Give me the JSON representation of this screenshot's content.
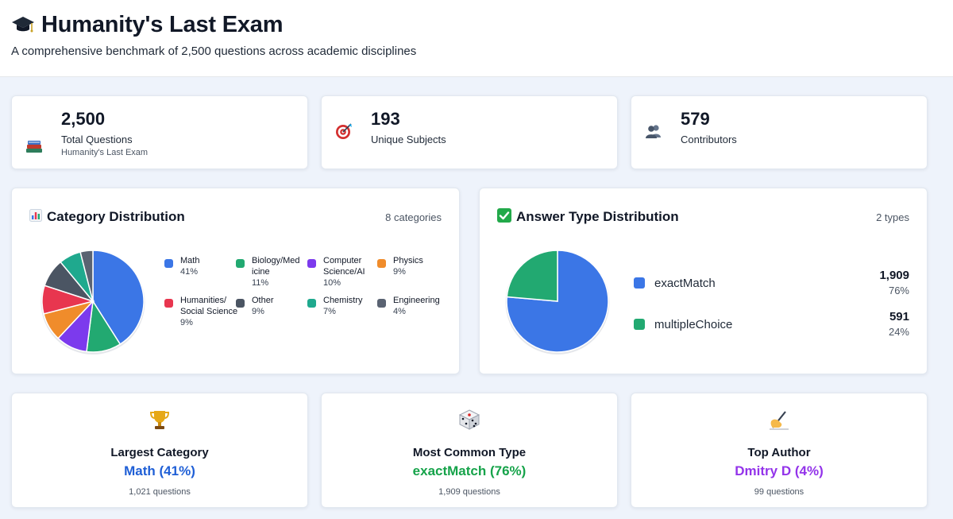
{
  "header": {
    "title": "Humanity's Last Exam",
    "subtitle": "A comprehensive benchmark of 2,500 questions across academic disciplines"
  },
  "stats": [
    {
      "icon": "books-icon",
      "value": "2,500",
      "label": "Total Questions",
      "sub": "Humanity's Last Exam"
    },
    {
      "icon": "target-icon",
      "value": "193",
      "label": "Unique Subjects",
      "sub": ""
    },
    {
      "icon": "people-icon",
      "value": "579",
      "label": "Contributors",
      "sub": ""
    }
  ],
  "category_panel": {
    "title": "Category Distribution",
    "title_icon": "bar-chart-icon",
    "meta": "8 categories",
    "items": [
      {
        "name": "Math",
        "pct": "41%",
        "color": "#3b76e6"
      },
      {
        "name": "Biology/Med icine",
        "pct": "11%",
        "color": "#22a971"
      },
      {
        "name": "Computer Science/AI",
        "pct": "10%",
        "color": "#7c3aed"
      },
      {
        "name": "Physics",
        "pct": "9%",
        "color": "#f08c2b"
      },
      {
        "name": "Humanities/ Social Science",
        "pct": "9%",
        "color": "#e8364f"
      },
      {
        "name": "Other",
        "pct": "9%",
        "color": "#4b5563"
      },
      {
        "name": "Chemistry",
        "pct": "7%",
        "color": "#1fa98e"
      },
      {
        "name": "Engineering",
        "pct": "4%",
        "color": "#5a6372"
      }
    ]
  },
  "answer_panel": {
    "title": "Answer Type Distribution",
    "title_icon": "check-box-icon",
    "meta": "2 types",
    "items": [
      {
        "name": "exactMatch",
        "count": "1,909",
        "pct": "76%",
        "color": "#3b76e6"
      },
      {
        "name": "multipleChoice",
        "count": "591",
        "pct": "24%",
        "color": "#22a971"
      }
    ]
  },
  "highlights": [
    {
      "icon": "trophy-icon",
      "label": "Largest Category",
      "value": "Math (41%)",
      "sub": "1,021 questions",
      "color": "#1f5fd6"
    },
    {
      "icon": "dice-icon",
      "label": "Most Common Type",
      "value": "exactMatch (76%)",
      "sub": "1,909 questions",
      "color": "#16a34a"
    },
    {
      "icon": "writing-hand-icon",
      "label": "Top Author",
      "value": "Dmitry D (4%)",
      "sub": "99 questions",
      "color": "#9333ea"
    }
  ],
  "chart_data": [
    {
      "type": "pie",
      "categories": [
        "Math",
        "Biology/Med icine",
        "Computer Science/AI",
        "Physics",
        "Humanities/ Social Science",
        "Other",
        "Chemistry",
        "Engineering"
      ],
      "values": [
        41,
        11,
        10,
        9,
        9,
        9,
        7,
        4
      ],
      "colors": [
        "#3b76e6",
        "#22a971",
        "#7c3aed",
        "#f08c2b",
        "#e8364f",
        "#4b5563",
        "#1fa98e",
        "#5a6372"
      ],
      "title": "Category Distribution",
      "legend": "right"
    },
    {
      "type": "pie",
      "categories": [
        "exactMatch",
        "multipleChoice"
      ],
      "values": [
        1909,
        591
      ],
      "colors": [
        "#3b76e6",
        "#22a971"
      ],
      "title": "Answer Type Distribution",
      "legend": "right"
    }
  ]
}
